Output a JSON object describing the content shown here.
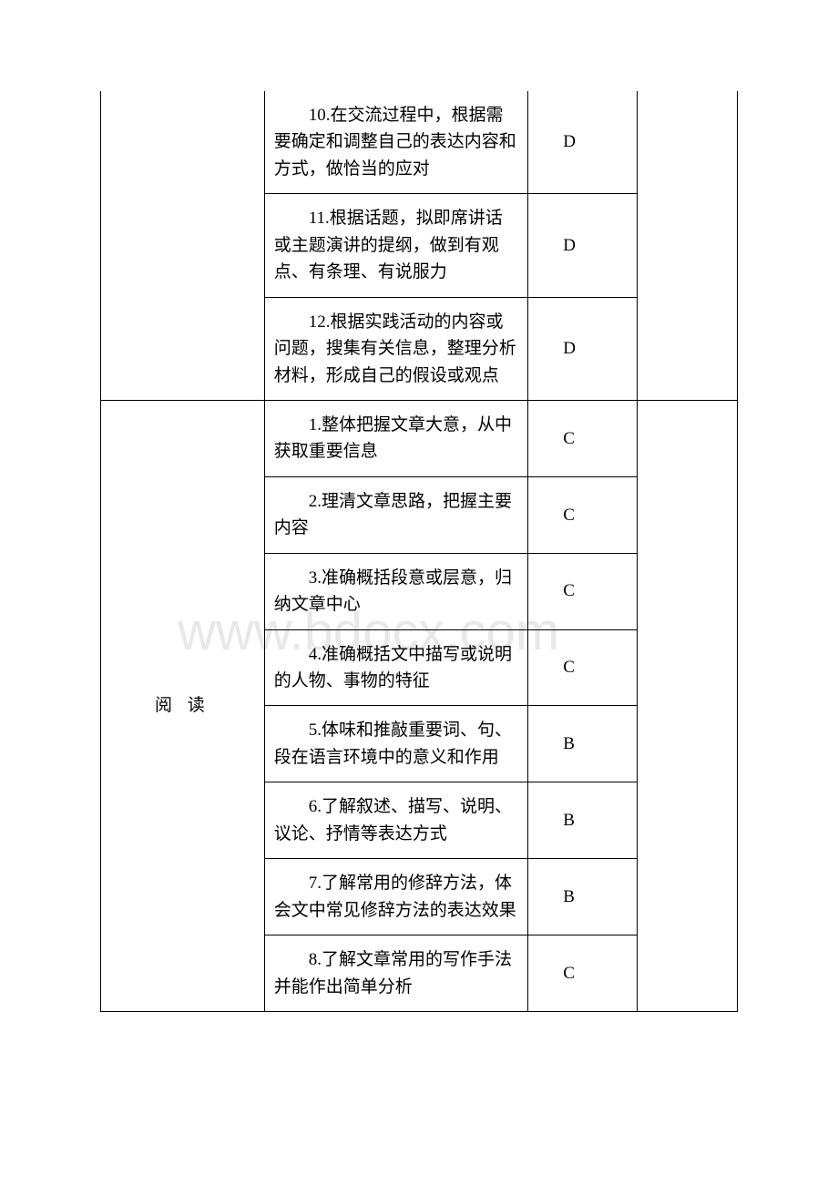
{
  "watermark": "www.bdocx.com",
  "table": {
    "top_group": {
      "items": [
        {
          "desc": "10.在交流过程中，根据需要确定和调整自己的表达内容和方式，做恰当的应对",
          "letter": "D"
        },
        {
          "desc": "11.根据话题，拟即席讲话或主题演讲的提纲，做到有观点、有条理、有说服力",
          "letter": "D"
        },
        {
          "desc": "12.根据实践活动的内容或问题，搜集有关信息，整理分析材料，形成自己的假设或观点",
          "letter": "D"
        }
      ]
    },
    "reading_group": {
      "category": "阅 读",
      "items": [
        {
          "desc": "1.整体把握文章大意，从中获取重要信息",
          "letter": "C"
        },
        {
          "desc": "2.理清文章思路，把握主要内容",
          "letter": "C"
        },
        {
          "desc": "3.准确概括段意或层意，归纳文章中心",
          "letter": "C"
        },
        {
          "desc": "4.准确概括文中描写或说明的人物、事物的特征",
          "letter": "C"
        },
        {
          "desc": "5.体味和推敲重要词、句、段在语言环境中的意义和作用",
          "letter": "B"
        },
        {
          "desc": "6.了解叙述、描写、说明、议论、抒情等表达方式",
          "letter": "B"
        },
        {
          "desc": "7.了解常用的修辞方法，体会文中常见修辞方法的表达效果",
          "letter": "B"
        },
        {
          "desc": "8.了解文章常用的写作手法并能作出简单分析",
          "letter": "C"
        }
      ]
    }
  }
}
